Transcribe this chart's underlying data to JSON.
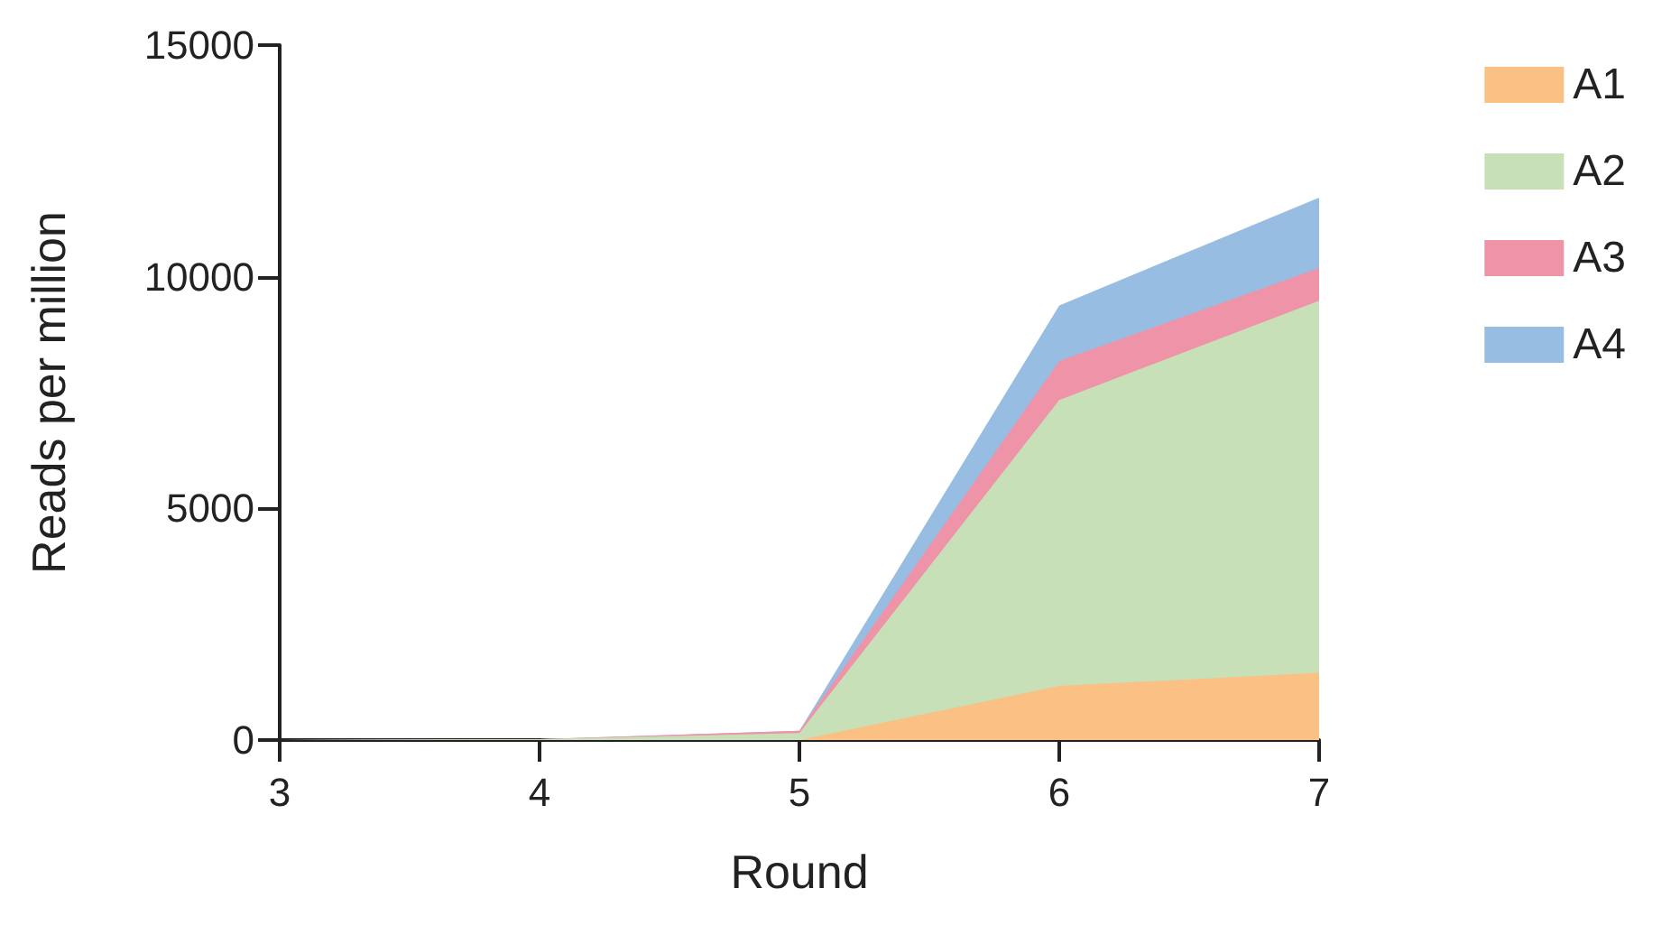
{
  "chart_data": {
    "type": "area",
    "stacked": true,
    "xlabel": "Round",
    "ylabel": "Reads per million",
    "x": [
      3,
      4,
      5,
      6,
      7
    ],
    "series": [
      {
        "name": "A1",
        "color": "#fbc083",
        "values": [
          0,
          0,
          0,
          1170,
          1450
        ]
      },
      {
        "name": "A2",
        "color": "#c8e0b8",
        "values": [
          0,
          20,
          150,
          6170,
          8030
        ]
      },
      {
        "name": "A3",
        "color": "#ef93a8",
        "values": [
          0,
          0,
          50,
          840,
          710
        ]
      },
      {
        "name": "A4",
        "color": "#98bde3",
        "values": [
          0,
          0,
          0,
          1200,
          1520
        ]
      }
    ],
    "xlim": [
      3,
      7
    ],
    "xticks": [
      3,
      4,
      5,
      6,
      7
    ],
    "ylim": [
      0,
      15000
    ],
    "yticks": [
      0,
      5000,
      10000,
      15000
    ],
    "grid": false,
    "legend": "right",
    "marker": "none"
  }
}
